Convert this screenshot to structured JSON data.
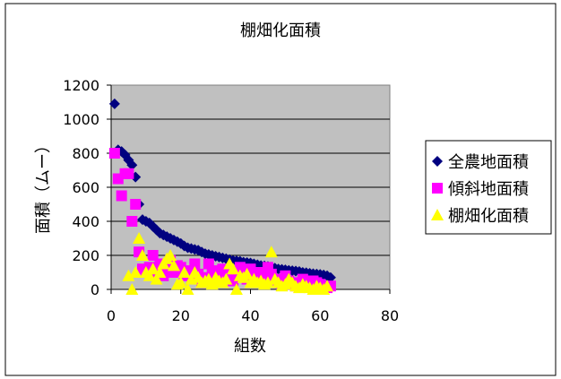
{
  "chart_data": {
    "type": "scatter",
    "title": "棚畑化面積",
    "xlabel": "組数",
    "ylabel": "面積（ムー）",
    "xlim": [
      0,
      80
    ],
    "ylim": [
      0,
      1200
    ],
    "xticks": [
      "0",
      "20",
      "40",
      "60",
      "80"
    ],
    "yticks": [
      "0",
      "200",
      "400",
      "600",
      "800",
      "1000",
      "1200"
    ],
    "grid": "horizontal",
    "plot_background": "#c0c0c0",
    "legend_position": "right",
    "series": [
      {
        "name": "全農地面積",
        "marker": "diamond",
        "color": "#000080",
        "points": [
          [
            1,
            1090
          ],
          [
            2,
            820
          ],
          [
            3,
            810
          ],
          [
            4,
            790
          ],
          [
            5,
            760
          ],
          [
            6,
            730
          ],
          [
            7,
            660
          ],
          [
            8,
            500
          ],
          [
            9,
            410
          ],
          [
            10,
            400
          ],
          [
            11,
            390
          ],
          [
            12,
            370
          ],
          [
            13,
            350
          ],
          [
            14,
            330
          ],
          [
            15,
            320
          ],
          [
            16,
            310
          ],
          [
            17,
            300
          ],
          [
            18,
            290
          ],
          [
            19,
            280
          ],
          [
            20,
            270
          ],
          [
            21,
            255
          ],
          [
            22,
            245
          ],
          [
            23,
            240
          ],
          [
            24,
            235
          ],
          [
            25,
            230
          ],
          [
            26,
            220
          ],
          [
            27,
            210
          ],
          [
            28,
            205
          ],
          [
            29,
            200
          ],
          [
            30,
            195
          ],
          [
            31,
            190
          ],
          [
            32,
            185
          ],
          [
            33,
            180
          ],
          [
            34,
            175
          ],
          [
            35,
            170
          ],
          [
            36,
            168
          ],
          [
            37,
            165
          ],
          [
            38,
            160
          ],
          [
            39,
            158
          ],
          [
            40,
            155
          ],
          [
            41,
            150
          ],
          [
            42,
            145
          ],
          [
            43,
            140
          ],
          [
            44,
            138
          ],
          [
            45,
            135
          ],
          [
            46,
            130
          ],
          [
            47,
            125
          ],
          [
            48,
            120
          ],
          [
            49,
            118
          ],
          [
            50,
            115
          ],
          [
            51,
            112
          ],
          [
            52,
            110
          ],
          [
            53,
            108
          ],
          [
            54,
            105
          ],
          [
            55,
            100
          ],
          [
            56,
            98
          ],
          [
            57,
            95
          ],
          [
            58,
            92
          ],
          [
            59,
            90
          ],
          [
            60,
            88
          ],
          [
            61,
            85
          ],
          [
            62,
            80
          ],
          [
            63,
            70
          ]
        ]
      },
      {
        "name": "傾斜地面積",
        "marker": "square",
        "color": "#ff00ff",
        "points": [
          [
            1,
            800
          ],
          [
            2,
            650
          ],
          [
            3,
            550
          ],
          [
            4,
            680
          ],
          [
            5,
            680
          ],
          [
            6,
            400
          ],
          [
            7,
            500
          ],
          [
            8,
            220
          ],
          [
            9,
            120
          ],
          [
            10,
            100
          ],
          [
            11,
            130
          ],
          [
            12,
            200
          ],
          [
            13,
            90
          ],
          [
            14,
            150
          ],
          [
            15,
            80
          ],
          [
            16,
            120
          ],
          [
            17,
            170
          ],
          [
            18,
            100
          ],
          [
            19,
            140
          ],
          [
            20,
            130
          ],
          [
            21,
            80
          ],
          [
            22,
            90
          ],
          [
            23,
            110
          ],
          [
            24,
            150
          ],
          [
            25,
            90
          ],
          [
            26,
            40
          ],
          [
            27,
            70
          ],
          [
            28,
            150
          ],
          [
            29,
            100
          ],
          [
            30,
            60
          ],
          [
            31,
            110
          ],
          [
            32,
            120
          ],
          [
            33,
            90
          ],
          [
            34,
            80
          ],
          [
            35,
            50
          ],
          [
            36,
            100
          ],
          [
            37,
            130
          ],
          [
            38,
            90
          ],
          [
            39,
            60
          ],
          [
            40,
            120
          ],
          [
            41,
            80
          ],
          [
            42,
            100
          ],
          [
            43,
            50
          ],
          [
            44,
            70
          ],
          [
            45,
            130
          ],
          [
            46,
            90
          ],
          [
            47,
            60
          ],
          [
            48,
            40
          ],
          [
            49,
            30
          ],
          [
            50,
            80
          ],
          [
            51,
            50
          ],
          [
            52,
            30
          ],
          [
            53,
            20
          ],
          [
            54,
            40
          ],
          [
            55,
            60
          ],
          [
            56,
            30
          ],
          [
            57,
            20
          ],
          [
            58,
            50
          ],
          [
            59,
            40
          ],
          [
            60,
            30
          ],
          [
            61,
            20
          ],
          [
            62,
            10
          ],
          [
            63,
            20
          ]
        ]
      },
      {
        "name": "棚畑化面積",
        "marker": "triangle",
        "color": "#ffff00",
        "points": [
          [
            5,
            80
          ],
          [
            6,
            0
          ],
          [
            7,
            100
          ],
          [
            8,
            300
          ],
          [
            9,
            200
          ],
          [
            10,
            100
          ],
          [
            11,
            80
          ],
          [
            12,
            120
          ],
          [
            13,
            60
          ],
          [
            14,
            100
          ],
          [
            15,
            150
          ],
          [
            16,
            180
          ],
          [
            17,
            200
          ],
          [
            18,
            140
          ],
          [
            19,
            30
          ],
          [
            20,
            40
          ],
          [
            21,
            100
          ],
          [
            22,
            0
          ],
          [
            23,
            60
          ],
          [
            24,
            100
          ],
          [
            25,
            70
          ],
          [
            26,
            40
          ],
          [
            27,
            50
          ],
          [
            28,
            60
          ],
          [
            29,
            30
          ],
          [
            30,
            70
          ],
          [
            31,
            50
          ],
          [
            32,
            40
          ],
          [
            33,
            60
          ],
          [
            34,
            150
          ],
          [
            35,
            120
          ],
          [
            36,
            0
          ],
          [
            37,
            80
          ],
          [
            38,
            70
          ],
          [
            39,
            90
          ],
          [
            40,
            40
          ],
          [
            41,
            60
          ],
          [
            42,
            40
          ],
          [
            43,
            50
          ],
          [
            44,
            30
          ],
          [
            45,
            40
          ],
          [
            46,
            220
          ],
          [
            47,
            60
          ],
          [
            48,
            40
          ],
          [
            49,
            20
          ],
          [
            50,
            30
          ],
          [
            51,
            60
          ],
          [
            52,
            40
          ],
          [
            53,
            20
          ],
          [
            54,
            10
          ],
          [
            55,
            30
          ],
          [
            56,
            20
          ],
          [
            57,
            10
          ],
          [
            58,
            0
          ],
          [
            59,
            20
          ],
          [
            60,
            10
          ],
          [
            61,
            0
          ],
          [
            62,
            20
          ]
        ]
      }
    ]
  }
}
